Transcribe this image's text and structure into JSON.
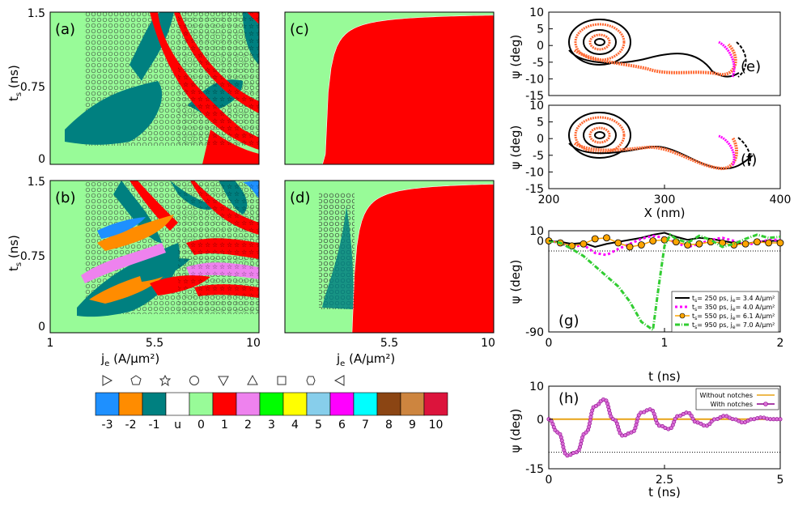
{
  "figure": {
    "colorbar": {
      "labels": [
        "-3",
        "-2",
        "-1",
        "u",
        "0",
        "1",
        "2",
        "3",
        "4",
        "5",
        "6",
        "7",
        "8",
        "9",
        "10"
      ],
      "colors": [
        "#1e90ff",
        "#ff8c00",
        "#008080",
        "#ffffff",
        "#98fb98",
        "#ff0000",
        "#ee82ee",
        "#00ff00",
        "#ffff00",
        "#87ceeb",
        "#ff00ff",
        "#00ffff",
        "#8b4513",
        "#cd853f",
        "#dc143c"
      ],
      "symbols": [
        "triangle-right",
        "pentagon",
        "star",
        "circle",
        "triangle-down",
        "triangle-up",
        "square",
        "hexagon",
        "triangle-left"
      ]
    }
  },
  "chart_data": [
    {
      "id": "a",
      "type": "heatmap",
      "panel_label": "(a)",
      "ylabel": "t",
      "ylabel_sub": "s",
      "ylabel_unit": " (ns)",
      "xlabel": "",
      "xlim": [
        1,
        10
      ],
      "ylim": [
        0,
        1.5
      ],
      "yticks": [
        "0",
        "0.75",
        "1.5"
      ],
      "xticks": []
    },
    {
      "id": "b",
      "type": "heatmap",
      "panel_label": "(b)",
      "ylabel": "t",
      "ylabel_sub": "s",
      "ylabel_unit": " (ns)",
      "xlabel": "j",
      "xlabel_sub": "e",
      "xlabel_unit": "  (A/μm²)",
      "xlim": [
        1,
        10
      ],
      "ylim": [
        0,
        1.5
      ],
      "yticks": [
        "0",
        "0.75",
        "1.5"
      ],
      "xticks": [
        "1",
        "5.5",
        "10"
      ]
    },
    {
      "id": "c",
      "type": "heatmap",
      "panel_label": "(c)",
      "xlim": [
        1,
        10
      ],
      "ylim": [
        0,
        1.5
      ],
      "xticks": [],
      "yticks": []
    },
    {
      "id": "d",
      "type": "heatmap",
      "panel_label": "(d)",
      "xlabel": "j",
      "xlabel_sub": "e",
      "xlabel_unit": "  (A/μm²)",
      "xlim": [
        1,
        10
      ],
      "ylim": [
        0,
        1.5
      ],
      "xticks": [
        "5.5",
        "10"
      ],
      "yticks": []
    },
    {
      "id": "e",
      "type": "line",
      "panel_label": "(e)",
      "ylabel": "ψ (deg)",
      "xlim": [
        200,
        400
      ],
      "ylim": [
        -15,
        10
      ],
      "yticks": [
        "10",
        "5",
        "0",
        "-5",
        "-10",
        "-15"
      ],
      "xticks": []
    },
    {
      "id": "f",
      "type": "line",
      "panel_label": "(f)",
      "ylabel": "ψ (deg)",
      "xlabel": "X (nm)",
      "xlim": [
        200,
        400
      ],
      "ylim": [
        -15,
        10
      ],
      "yticks": [
        "10",
        "5",
        "0",
        "-5",
        "-10",
        "-15"
      ],
      "xticks": [
        "200",
        "300",
        "400"
      ]
    },
    {
      "id": "g",
      "type": "line",
      "panel_label": "(g)",
      "ylabel": "ψ (deg)",
      "xlabel": "t (ns)",
      "xlim": [
        0,
        2
      ],
      "ylim": [
        -90,
        10
      ],
      "yticks": [
        "10",
        "0",
        "-90"
      ],
      "xticks": [
        "0",
        "1",
        "2"
      ],
      "series": [
        {
          "name": "t",
          "sub1": "s",
          "rest": "= 250 ps, j",
          "sub2": "e",
          "val": "= 3.4 A/μm²",
          "color": "#000000",
          "t": [
            0,
            0.1,
            0.2,
            0.3,
            0.4,
            0.5,
            0.6,
            0.7,
            0.8,
            0.9,
            1.0,
            1.1,
            1.2,
            1.3,
            1.4,
            1.5,
            1.6,
            1.7,
            1.8,
            1.9,
            2.0
          ],
          "v": [
            0,
            -1,
            -3,
            -2,
            -6,
            -3,
            -1,
            1,
            3,
            6,
            8,
            4,
            1,
            3,
            2,
            0,
            -2,
            -3,
            -1,
            0,
            0
          ]
        },
        {
          "name": "t",
          "sub1": "s",
          "rest": "= 350 ps, j",
          "sub2": "e",
          "val": "= 4.0 A/μm²",
          "color": "#ff00ff",
          "t": [
            0,
            0.1,
            0.2,
            0.3,
            0.4,
            0.5,
            0.6,
            0.7,
            0.8,
            0.9,
            1.0,
            1.1,
            1.2,
            1.3,
            1.4,
            1.5,
            1.6,
            1.7,
            1.8,
            1.9,
            2.0
          ],
          "v": [
            0,
            -2,
            -6,
            -4,
            -12,
            -14,
            -8,
            -3,
            2,
            5,
            3,
            -2,
            -6,
            -3,
            1,
            3,
            0,
            -4,
            -2,
            1,
            1
          ]
        },
        {
          "name": "t",
          "sub1": "s",
          "rest": "= 550 ps, j",
          "sub2": "e",
          "val": "= 6.1 A/μm²",
          "color": "#ffa500",
          "t": [
            0,
            0.1,
            0.2,
            0.3,
            0.4,
            0.5,
            0.6,
            0.7,
            0.8,
            0.9,
            1.0,
            1.1,
            1.2,
            1.3,
            1.4,
            1.5,
            1.6,
            1.7,
            1.8,
            1.9,
            2.0
          ],
          "v": [
            0,
            -2,
            -5,
            -3,
            2,
            3,
            -2,
            -6,
            -4,
            0,
            1,
            -1,
            -4,
            -3,
            -1,
            -2,
            -4,
            -3,
            -1,
            -2,
            -2
          ]
        },
        {
          "name": "t",
          "sub1": "s",
          "rest": "= 950 ps, j",
          "sub2": "e",
          "val": "= 7.0 A/μm²",
          "color": "#32cd32",
          "t": [
            0,
            0.1,
            0.2,
            0.3,
            0.4,
            0.5,
            0.6,
            0.7,
            0.8,
            0.9,
            0.95,
            1.0,
            1.05,
            1.1,
            1.2,
            1.3,
            1.4,
            1.5,
            1.6,
            1.7,
            1.8,
            1.9,
            2.0
          ],
          "v": [
            0,
            -2,
            -8,
            -15,
            -25,
            -35,
            -45,
            -60,
            -80,
            -88,
            -45,
            -5,
            6,
            2,
            -2,
            5,
            1,
            -6,
            -3,
            2,
            6,
            3,
            4
          ]
        }
      ]
    },
    {
      "id": "h",
      "type": "line",
      "panel_label": "(h)",
      "ylabel": "ψ (deg)",
      "xlabel": "t (ns)",
      "xlim": [
        0,
        5
      ],
      "ylim": [
        -15,
        10
      ],
      "yticks": [
        "10",
        "0",
        "-15"
      ],
      "xticks": [
        "0",
        "2.5",
        "5"
      ],
      "series": [
        {
          "name": "Without notches",
          "color": "#e8a317",
          "t": [
            0,
            5
          ],
          "v": [
            0,
            0
          ]
        },
        {
          "name": "With notches",
          "color": "#8b008b",
          "t": [
            0,
            0.2,
            0.4,
            0.6,
            0.8,
            1.0,
            1.2,
            1.4,
            1.6,
            1.8,
            2.0,
            2.2,
            2.4,
            2.6,
            2.8,
            3.0,
            3.2,
            3.4,
            3.6,
            3.8,
            4.0,
            4.2,
            4.4,
            4.6,
            4.8,
            5.0
          ],
          "v": [
            0,
            -4,
            -11,
            -10,
            -4,
            4,
            6,
            0,
            -5,
            -4,
            2,
            3,
            -2,
            -3,
            1,
            2,
            -1,
            -2,
            0,
            1,
            0,
            -1,
            0,
            0.5,
            0,
            0
          ]
        }
      ],
      "reference_line": -10
    }
  ]
}
